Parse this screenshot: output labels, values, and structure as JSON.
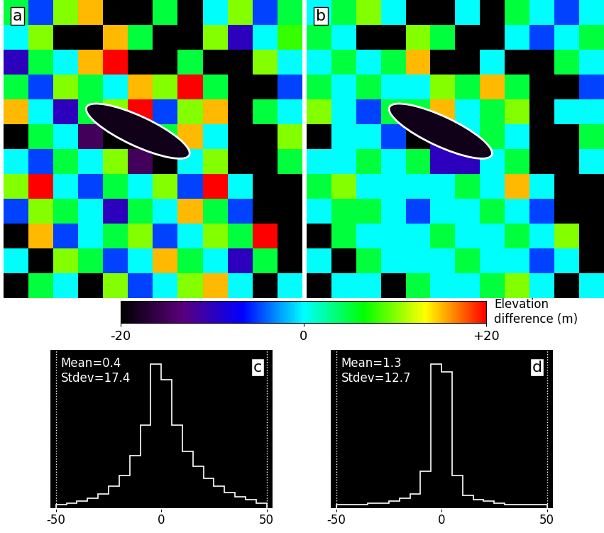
{
  "chart_data": [
    {
      "type": "heatmap",
      "title": "a",
      "tick_labels": false,
      "cells": [
        [
          5,
          -5,
          10,
          15,
          null,
          null,
          5,
          null,
          0,
          10,
          -5,
          5
        ],
        [
          0,
          10,
          null,
          null,
          15,
          5,
          null,
          null,
          10,
          -10,
          0,
          8
        ],
        [
          -10,
          5,
          0,
          15,
          20,
          null,
          null,
          5,
          null,
          null,
          10,
          0
        ],
        [
          5,
          -5,
          10,
          5,
          0,
          15,
          10,
          20,
          5,
          null,
          null,
          -5
        ],
        [
          15,
          0,
          -10,
          5,
          10,
          20,
          -5,
          10,
          15,
          null,
          5,
          0
        ],
        [
          null,
          5,
          0,
          -15,
          null,
          -20,
          5,
          15,
          0,
          null,
          null,
          10
        ],
        [
          0,
          -5,
          5,
          0,
          10,
          -15,
          -20,
          0,
          10,
          null,
          null,
          5
        ],
        [
          10,
          20,
          0,
          -5,
          5,
          0,
          10,
          -5,
          20,
          0,
          null,
          null
        ],
        [
          -5,
          10,
          5,
          0,
          -10,
          5,
          0,
          15,
          5,
          -5,
          null,
          null
        ],
        [
          null,
          15,
          -5,
          0,
          5,
          10,
          -5,
          0,
          10,
          5,
          20,
          null
        ],
        [
          0,
          null,
          10,
          5,
          -5,
          0,
          15,
          5,
          0,
          -10,
          5,
          null
        ],
        [
          null,
          5,
          0,
          null,
          10,
          -5,
          0,
          10,
          15,
          0,
          null,
          0
        ]
      ]
    },
    {
      "type": "heatmap",
      "title": "b",
      "tick_labels": false,
      "cells": [
        [
          0,
          5,
          10,
          0,
          null,
          null,
          0,
          null,
          5,
          0,
          -5,
          0
        ],
        [
          5,
          0,
          null,
          null,
          10,
          5,
          null,
          null,
          0,
          -5,
          0,
          5
        ],
        [
          0,
          5,
          0,
          5,
          15,
          null,
          null,
          0,
          null,
          null,
          5,
          0
        ],
        [
          5,
          0,
          5,
          0,
          0,
          10,
          5,
          15,
          5,
          null,
          null,
          -5
        ],
        [
          10,
          0,
          -5,
          5,
          5,
          15,
          0,
          5,
          10,
          null,
          0,
          0
        ],
        [
          null,
          0,
          0,
          -5,
          null,
          -10,
          0,
          5,
          0,
          null,
          null,
          5
        ],
        [
          0,
          0,
          5,
          0,
          5,
          -10,
          -10,
          0,
          5,
          null,
          null,
          0
        ],
        [
          5,
          10,
          0,
          0,
          0,
          0,
          5,
          0,
          15,
          0,
          null,
          null
        ],
        [
          0,
          5,
          5,
          0,
          -5,
          0,
          0,
          5,
          0,
          -5,
          null,
          null
        ],
        [
          null,
          5,
          0,
          0,
          0,
          5,
          0,
          0,
          5,
          0,
          10,
          null
        ],
        [
          0,
          null,
          5,
          0,
          0,
          0,
          5,
          0,
          0,
          -5,
          0,
          null
        ],
        [
          null,
          0,
          0,
          null,
          5,
          0,
          0,
          5,
          10,
          0,
          null,
          0
        ]
      ]
    },
    {
      "type": "histogram",
      "title": "c",
      "tick_labels": "x",
      "annotations": [
        "Mean=0.4",
        "Stdev=17.4"
      ],
      "bins": [
        -50,
        -45,
        -40,
        -35,
        -30,
        -25,
        -20,
        -15,
        -10,
        -5,
        0,
        5,
        10,
        15,
        20,
        25,
        30,
        35,
        40,
        45,
        50
      ],
      "counts": [
        3,
        4,
        5,
        7,
        10,
        15,
        22,
        35,
        55,
        95,
        85,
        55,
        38,
        28,
        20,
        15,
        11,
        8,
        6,
        4
      ],
      "xlim": [
        -53,
        53
      ],
      "xticks": [
        -50,
        0,
        50
      ],
      "ylim": [
        0,
        105
      ]
    },
    {
      "type": "histogram",
      "title": "d",
      "tick_labels": "x",
      "annotations": [
        "Mean=1.3",
        "Stdev=12.7"
      ],
      "bins": [
        -50,
        -45,
        -40,
        -35,
        -30,
        -25,
        -20,
        -15,
        -10,
        -5,
        0,
        5,
        10,
        15,
        20,
        25,
        30,
        35,
        40,
        45,
        50
      ],
      "counts": [
        3,
        3,
        3,
        4,
        4,
        5,
        7,
        10,
        25,
        95,
        90,
        22,
        9,
        6,
        5,
        4,
        3,
        3,
        3,
        3
      ],
      "xlim": [
        -53,
        53
      ],
      "xticks": [
        -50,
        0,
        50
      ],
      "ylim": [
        0,
        105
      ]
    }
  ],
  "colorbar": {
    "label": "Elevation difference (m)",
    "range": [
      -20,
      20
    ],
    "ticks": [
      -20,
      0,
      {
        "value": 20,
        "label": "+20"
      }
    ]
  }
}
